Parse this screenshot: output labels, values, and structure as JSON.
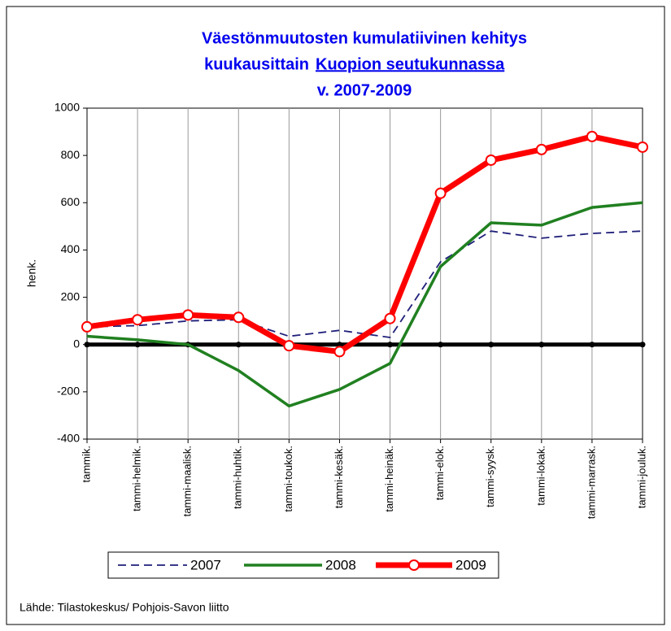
{
  "chart_data": {
    "type": "line",
    "title": [
      "Väestönmuutosten kumulatiivinen kehitys",
      "kuukausittain",
      "Kuopion seutukunnassa",
      "v. 2007-2009"
    ],
    "y_label": "henk.",
    "source": "Lähde: Tilastokeskus/ Pohjois-Savon liitto",
    "categories": [
      "tammik.",
      "tammi-helmik.",
      "tammi-maalisk.",
      "tammi-huhtik.",
      "tammi-toukok.",
      "tammi-kesäk.",
      "tammi-heinäk.",
      "tammi-elok.",
      "tammi-syysk.",
      "tammi-lokak.",
      "tammi-marrask.",
      "tammi-jouluk."
    ],
    "series": [
      {
        "name": "2007",
        "color": "#1f1f7a",
        "values": [
          75,
          80,
          100,
          105,
          35,
          60,
          30,
          350,
          480,
          450,
          470,
          480
        ]
      },
      {
        "name": "2008",
        "color": "#208020",
        "values": [
          35,
          20,
          0,
          -110,
          -260,
          -190,
          -80,
          330,
          515,
          505,
          580,
          600
        ]
      },
      {
        "name": "2009",
        "color": "#ff0000",
        "values": [
          75,
          105,
          125,
          115,
          -5,
          -30,
          110,
          640,
          780,
          825,
          880,
          835
        ]
      }
    ],
    "ylim": [
      -400,
      1000
    ],
    "yticks": [
      -400,
      -200,
      0,
      200,
      400,
      600,
      800,
      1000
    ]
  }
}
